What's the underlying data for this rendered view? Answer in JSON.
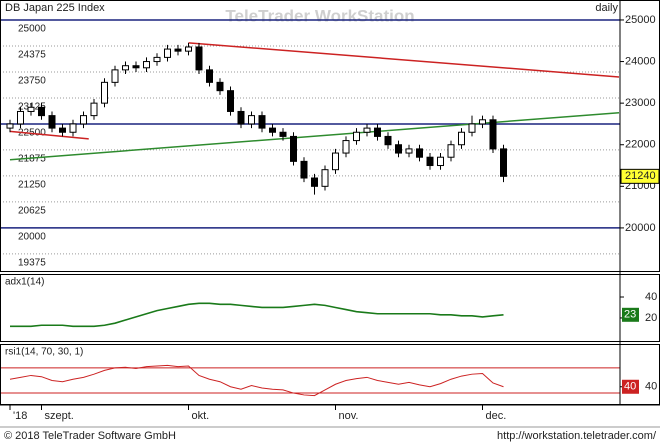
{
  "header": {
    "title": "DB Japan 225 Index",
    "interval": "daily",
    "watermark": "TeleTrader WorkStation"
  },
  "chart_data": [
    {
      "type": "candlestick",
      "categories": [
        "'18",
        null,
        null,
        "szept.",
        null,
        null,
        null,
        null,
        null,
        null,
        null,
        null,
        null,
        null,
        null,
        null,
        null,
        "okt.",
        null,
        null,
        null,
        null,
        null,
        null,
        null,
        null,
        null,
        null,
        null,
        null,
        null,
        "nov.",
        null,
        null,
        null,
        null,
        null,
        null,
        null,
        null,
        null,
        null,
        null,
        null,
        null,
        "dec.",
        null,
        null
      ],
      "ohlc": [
        [
          22400,
          22600,
          22300,
          22500
        ],
        [
          22500,
          22900,
          22400,
          22800
        ],
        [
          22800,
          23000,
          22700,
          22900
        ],
        [
          22900,
          23000,
          22600,
          22700
        ],
        [
          22700,
          22800,
          22300,
          22400
        ],
        [
          22400,
          22500,
          22200,
          22300
        ],
        [
          22300,
          22600,
          22200,
          22500
        ],
        [
          22500,
          22800,
          22400,
          22700
        ],
        [
          22700,
          23100,
          22600,
          23000
        ],
        [
          23000,
          23600,
          22900,
          23500
        ],
        [
          23500,
          23900,
          23400,
          23800
        ],
        [
          23800,
          24000,
          23700,
          23900
        ],
        [
          23900,
          24000,
          23750,
          23850
        ],
        [
          23850,
          24100,
          23750,
          24000
        ],
        [
          24000,
          24200,
          23900,
          24100
        ],
        [
          24100,
          24400,
          24000,
          24300
        ],
        [
          24300,
          24400,
          24150,
          24250
        ],
        [
          24250,
          24450,
          24150,
          24350
        ],
        [
          24350,
          24450,
          23700,
          23800
        ],
        [
          23800,
          23900,
          23400,
          23500
        ],
        [
          23500,
          23600,
          23200,
          23300
        ],
        [
          23300,
          23400,
          22700,
          22800
        ],
        [
          22800,
          22900,
          22400,
          22500
        ],
        [
          22500,
          22800,
          22400,
          22700
        ],
        [
          22700,
          22800,
          22300,
          22400
        ],
        [
          22400,
          22500,
          22200,
          22300
        ],
        [
          22300,
          22400,
          22100,
          22200
        ],
        [
          22200,
          22300,
          21500,
          21600
        ],
        [
          21600,
          21700,
          21100,
          21200
        ],
        [
          21200,
          21300,
          20800,
          21000
        ],
        [
          21000,
          21500,
          20900,
          21400
        ],
        [
          21400,
          21900,
          21300,
          21800
        ],
        [
          21800,
          22200,
          21700,
          22100
        ],
        [
          22100,
          22400,
          22000,
          22300
        ],
        [
          22300,
          22500,
          22200,
          22400
        ],
        [
          22400,
          22500,
          22100,
          22200
        ],
        [
          22200,
          22300,
          21900,
          22000
        ],
        [
          22000,
          22100,
          21700,
          21800
        ],
        [
          21800,
          22000,
          21700,
          21900
        ],
        [
          21900,
          22000,
          21600,
          21700
        ],
        [
          21700,
          21800,
          21400,
          21500
        ],
        [
          21500,
          21800,
          21400,
          21700
        ],
        [
          21700,
          22100,
          21600,
          22000
        ],
        [
          22000,
          22400,
          21900,
          22300
        ],
        [
          22300,
          22700,
          22200,
          22500
        ],
        [
          22500,
          22700,
          22400,
          22600
        ],
        [
          22600,
          22700,
          21800,
          21900
        ],
        [
          21900,
          22000,
          21100,
          21240
        ]
      ],
      "ylim": [
        18940,
        25480
      ],
      "yticks": [
        20000,
        21000,
        22000,
        23000,
        24000,
        25000
      ],
      "left_ticks": [
        25000,
        24375,
        23750,
        23125,
        22500,
        21875,
        21250,
        20625,
        20000,
        19375
      ],
      "major_levels": [
        25000,
        22500,
        20000
      ],
      "major_color": "#1a237e",
      "last_marker_color": "#ffff33",
      "trend_lines": [
        {
          "color": "#cc2222",
          "x": [
            17,
            58
          ],
          "y": [
            24450,
            23630
          ]
        },
        {
          "color": "#cc2222",
          "x": [
            0,
            7.5
          ],
          "y": [
            22320,
            22140
          ]
        },
        {
          "color": "#2e8b2e",
          "x": [
            0,
            58
          ],
          "y": [
            21640,
            22770
          ]
        }
      ]
    },
    {
      "type": "line",
      "title": "adx1(14)",
      "color": "#1a7a1a",
      "last_marker_color": "#1a7a1a",
      "values": [
        12,
        12,
        12,
        13,
        13,
        13,
        12,
        12,
        12,
        13,
        15,
        18,
        21,
        24,
        27,
        29,
        31,
        33,
        34,
        34,
        33,
        33,
        32,
        31,
        30,
        30,
        30,
        31,
        32,
        33,
        32,
        30,
        28,
        26,
        25,
        24,
        24,
        24,
        24,
        24,
        24,
        23,
        23,
        22,
        22,
        21,
        22,
        23
      ],
      "ylim": [
        -3,
        62
      ],
      "yticks": [
        20,
        40
      ]
    },
    {
      "type": "line",
      "title": "rsi1(14, 70, 30, 1)",
      "color": "#cc2222",
      "last_marker_color": "#cc2222",
      "values": [
        52,
        55,
        58,
        56,
        50,
        48,
        52,
        55,
        60,
        66,
        70,
        71,
        69,
        72,
        73,
        74,
        72,
        73,
        58,
        52,
        48,
        40,
        36,
        42,
        38,
        36,
        35,
        30,
        27,
        26,
        35,
        44,
        50,
        53,
        55,
        50,
        47,
        44,
        47,
        43,
        40,
        45,
        52,
        57,
        60,
        61,
        46,
        40
      ],
      "ylim": [
        11,
        108
      ],
      "yticks": [
        40
      ],
      "bands": [
        30,
        70
      ]
    }
  ],
  "footer": {
    "copyright": "© 2018 TeleTrader Software GmbH",
    "url": "http://workstation.teletrader.com/"
  }
}
